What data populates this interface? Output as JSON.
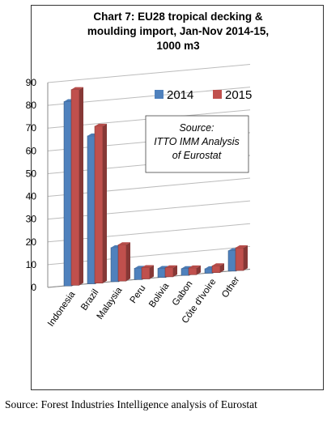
{
  "chart_data": {
    "type": "bar",
    "title_lines": [
      "Chart 7: EU28 tropical decking &",
      "moulding import, Jan-Nov 2014-15,",
      "1000 m3"
    ],
    "categories": [
      "Indonesia",
      "Brazil",
      "Malaysia",
      "Peru",
      "Bolivia",
      "Gabon",
      "Côte d'Ivoire",
      "Other"
    ],
    "series": [
      {
        "name": "2014",
        "values": [
          81,
          65,
          15,
          5,
          4,
          3,
          2,
          9
        ],
        "color": "#4f81bd"
      },
      {
        "name": "2015",
        "values": [
          86,
          69,
          16,
          5,
          4,
          3,
          3,
          10
        ],
        "color": "#c0504d"
      }
    ],
    "yticks": [
      "0",
      "10",
      "20",
      "30",
      "40",
      "50",
      "60",
      "70",
      "80",
      "90"
    ],
    "ylim": [
      0,
      90
    ],
    "grid": true,
    "legend_position": "top-right",
    "annotation_lines": [
      "Source:",
      "ITTO IMM Analysis",
      "of Eurostat"
    ]
  },
  "footer": {
    "source": "Source: Forest Industries Intelligence analysis of Eurostat"
  }
}
